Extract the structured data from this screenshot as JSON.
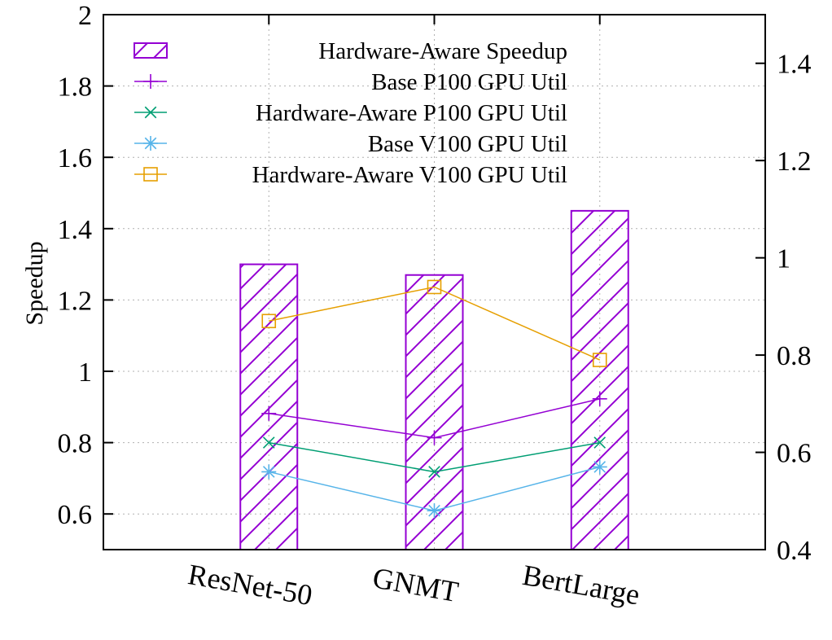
{
  "chart_data": {
    "type": "bar",
    "title": "",
    "xlabel": "",
    "ylabel": "Speedup",
    "y2label": "",
    "categories": [
      "ResNet-50",
      "GNMT",
      "BertLarge"
    ],
    "ylim": [
      0.5,
      2.0
    ],
    "yticks": [
      "0.6",
      "0.8",
      "1",
      "1.2",
      "1.4",
      "1.6",
      "1.8",
      "2"
    ],
    "y2lim": [
      0.4,
      1.5
    ],
    "y2ticks": [
      "0.4",
      "0.6",
      "0.8",
      "1",
      "1.2",
      "1.4"
    ],
    "grid": true,
    "legend_position": "top-left",
    "bar_series": {
      "name": "Hardware-Aware Speedup",
      "values": [
        1.3,
        1.27,
        1.45
      ],
      "color": "#9400d3",
      "pattern": "diagonal-hatch"
    },
    "line_series": [
      {
        "name": "Base P100 GPU Util",
        "values": [
          0.68,
          0.63,
          0.71
        ],
        "color": "#9400d3",
        "marker": "plus"
      },
      {
        "name": "Hardware-Aware P100 GPU Util",
        "values": [
          0.62,
          0.56,
          0.62
        ],
        "color": "#009e73",
        "marker": "cross"
      },
      {
        "name": "Base V100 GPU Util",
        "values": [
          0.56,
          0.48,
          0.57
        ],
        "color": "#56b4e9",
        "marker": "asterisk"
      },
      {
        "name": "Hardware-Aware V100 GPU Util",
        "values": [
          0.87,
          0.94,
          0.79
        ],
        "color": "#e69f00",
        "marker": "square"
      }
    ]
  }
}
